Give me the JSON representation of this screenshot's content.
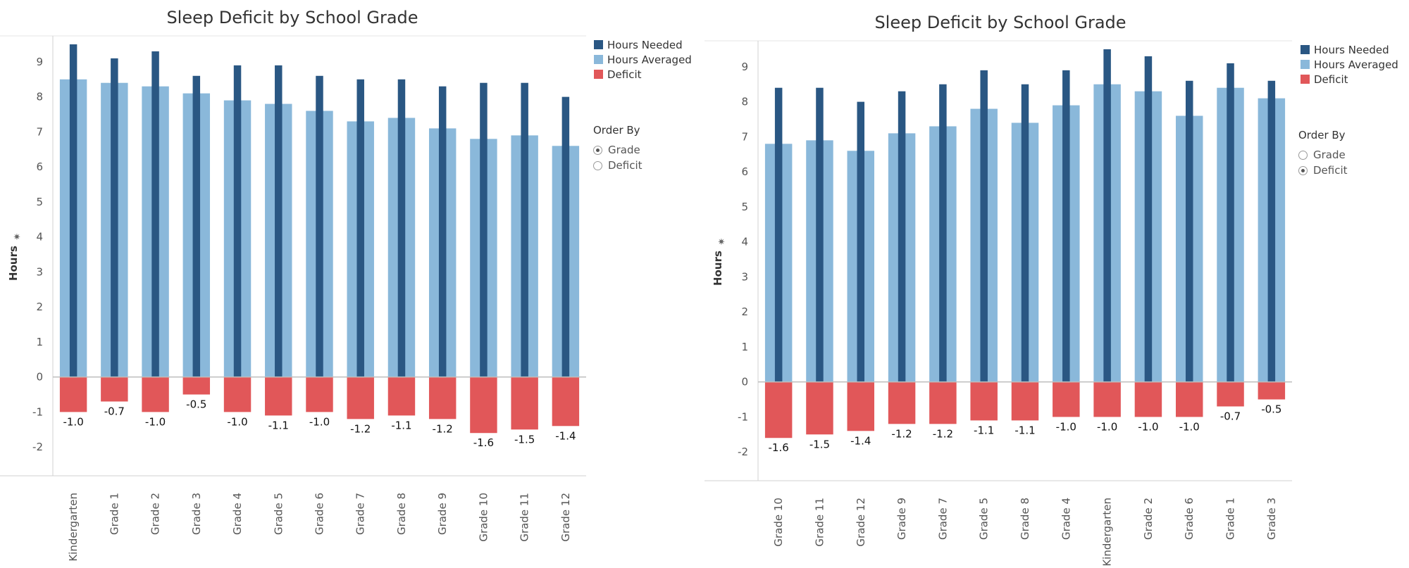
{
  "colors": {
    "needed": "#2a5783",
    "averaged": "#8ab8da",
    "deficit": "#e15759"
  },
  "legend": {
    "needed": "Hours Needed",
    "averaged": "Hours Averaged",
    "deficit": "Deficit"
  },
  "order_by": {
    "title": "Order By",
    "grade": "Grade",
    "deficit": "Deficit"
  },
  "pin_icon": "pin-icon",
  "chart_data": [
    {
      "type": "bar",
      "title": "Sleep Deficit by School Grade",
      "ylabel": "Hours",
      "ylim": [
        -2.5,
        9.5
      ],
      "yticks": [
        -2,
        -1,
        0,
        1,
        2,
        3,
        4,
        5,
        6,
        7,
        8,
        9
      ],
      "grid": false,
      "legend_position": "right",
      "selected_order": "Grade",
      "categories": [
        "Kindergarten",
        "Grade 1",
        "Grade 2",
        "Grade 3",
        "Grade 4",
        "Grade 5",
        "Grade 6",
        "Grade 7",
        "Grade 8",
        "Grade 9",
        "Grade 10",
        "Grade 11",
        "Grade 12"
      ],
      "series": [
        {
          "name": "Hours Needed",
          "values": [
            9.5,
            9.1,
            9.3,
            8.6,
            8.9,
            8.9,
            8.6,
            8.5,
            8.5,
            8.3,
            8.4,
            8.4,
            8.0
          ]
        },
        {
          "name": "Hours Averaged",
          "values": [
            8.5,
            8.4,
            8.3,
            8.1,
            7.9,
            7.8,
            7.6,
            7.3,
            7.4,
            7.1,
            6.8,
            6.9,
            6.6
          ]
        },
        {
          "name": "Deficit",
          "values": [
            -1.0,
            -0.7,
            -1.0,
            -0.5,
            -1.0,
            -1.1,
            -1.0,
            -1.2,
            -1.1,
            -1.2,
            -1.6,
            -1.5,
            -1.4
          ]
        }
      ]
    },
    {
      "type": "bar",
      "title": "Sleep Deficit by School Grade",
      "ylabel": "Hours",
      "ylim": [
        -2.5,
        9.5
      ],
      "yticks": [
        -2,
        -1,
        0,
        1,
        2,
        3,
        4,
        5,
        6,
        7,
        8,
        9
      ],
      "grid": false,
      "legend_position": "right",
      "selected_order": "Deficit",
      "categories": [
        "Grade 10",
        "Grade 11",
        "Grade 12",
        "Grade 9",
        "Grade 7",
        "Grade 5",
        "Grade 8",
        "Grade 4",
        "Kindergarten",
        "Grade 2",
        "Grade 6",
        "Grade 1",
        "Grade 3"
      ],
      "series": [
        {
          "name": "Hours Needed",
          "values": [
            8.4,
            8.4,
            8.0,
            8.3,
            8.5,
            8.9,
            8.5,
            8.9,
            9.5,
            9.3,
            8.6,
            9.1,
            8.6
          ]
        },
        {
          "name": "Hours Averaged",
          "values": [
            6.8,
            6.9,
            6.6,
            7.1,
            7.3,
            7.8,
            7.4,
            7.9,
            8.5,
            8.3,
            7.6,
            8.4,
            8.1
          ]
        },
        {
          "name": "Deficit",
          "values": [
            -1.6,
            -1.5,
            -1.4,
            -1.2,
            -1.2,
            -1.1,
            -1.1,
            -1.0,
            -1.0,
            -1.0,
            -1.0,
            -0.7,
            -0.5
          ]
        }
      ]
    }
  ]
}
